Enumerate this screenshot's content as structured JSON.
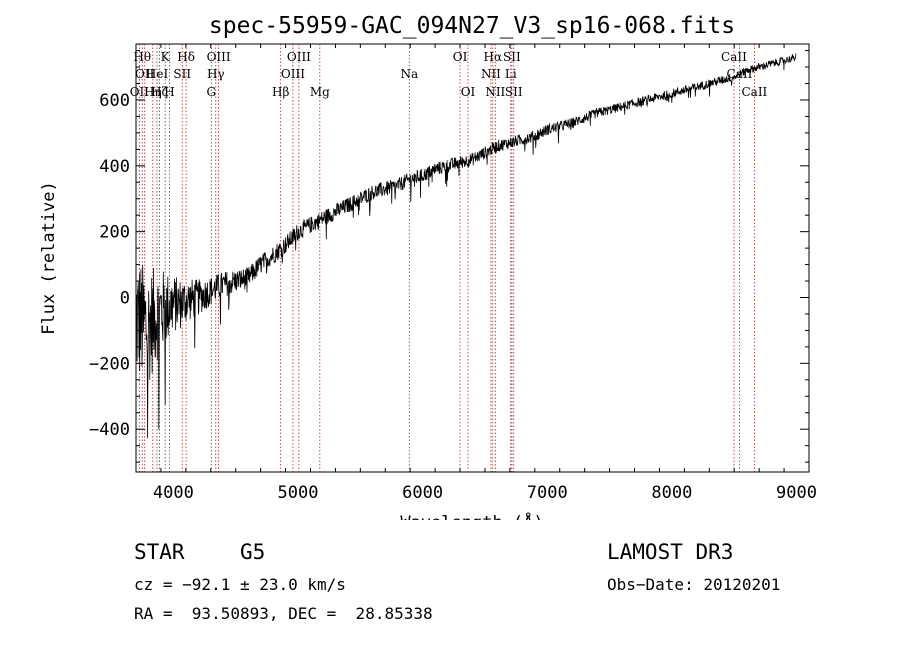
{
  "chart_data": {
    "type": "line",
    "title": "spec-55959-GAC_094N27_V3_sp16-068.fits",
    "xlabel": "Wavelength (Å)",
    "ylabel": "Flux (relative)",
    "xlim": [
      3700,
      9100
    ],
    "ylim": [
      -530,
      770
    ],
    "x_ticks": [
      4000,
      5000,
      6000,
      7000,
      8000,
      9000
    ],
    "y_ticks": [
      -400,
      -200,
      0,
      200,
      400,
      600
    ],
    "x_tick_labels": [
      "4000",
      "5000",
      "6000",
      "7000",
      "8000",
      "9000"
    ],
    "y_tick_labels": [
      "−400",
      "−200",
      "0",
      "200",
      "400",
      "600"
    ],
    "series": [
      {
        "name": "flux",
        "x": [
          3700,
          3750,
          3800,
          3850,
          3900,
          3950,
          4000,
          4050,
          4100,
          4200,
          4300,
          4400,
          4500,
          4600,
          4700,
          4800,
          4900,
          5000,
          5100,
          5200,
          5300,
          5400,
          5500,
          5600,
          5700,
          5800,
          5900,
          6000,
          6100,
          6200,
          6300,
          6400,
          6500,
          6600,
          6700,
          6800,
          6900,
          7000,
          7200,
          7400,
          7600,
          7800,
          8000,
          8200,
          8400,
          8500,
          8600,
          8700,
          8800,
          8900,
          9000
        ],
        "y": [
          -60,
          -80,
          -90,
          -60,
          -40,
          -30,
          -20,
          -20,
          -10,
          0,
          20,
          40,
          50,
          60,
          100,
          130,
          160,
          200,
          220,
          240,
          260,
          280,
          300,
          320,
          330,
          340,
          360,
          370,
          390,
          400,
          410,
          420,
          440,
          460,
          470,
          480,
          490,
          510,
          530,
          560,
          580,
          600,
          620,
          640,
          660,
          670,
          690,
          700,
          710,
          720,
          730
        ],
        "noise": [
          200,
          190,
          180,
          150,
          130,
          110,
          90,
          80,
          70,
          55,
          45,
          40,
          36,
          32,
          30,
          28,
          28,
          27,
          26,
          25,
          25,
          24,
          24,
          23,
          23,
          22,
          22,
          22,
          21,
          21,
          20,
          20,
          19,
          19,
          18,
          18,
          18,
          17,
          16,
          15,
          14,
          14,
          14,
          13,
          13,
          12,
          12,
          12,
          12,
          11,
          11
        ]
      }
    ],
    "emission_lines": [
      {
        "wave": 3727,
        "label": "OII",
        "row": 3
      },
      {
        "wave": 3750,
        "label": "Hθ",
        "row": 1
      },
      {
        "wave": 3770,
        "label": "OII",
        "row": 2
      },
      {
        "wave": 3835,
        "label": "Hη",
        "row": 3
      },
      {
        "wave": 3869,
        "label": "HeI",
        "row": 2
      },
      {
        "wave": 3889,
        "label": "Hζ",
        "row": 3
      },
      {
        "wave": 3934,
        "label": "K",
        "row": 1
      },
      {
        "wave": 3969,
        "label": "H",
        "row": 3
      },
      {
        "wave": 4071,
        "label": "SII",
        "row": 2
      },
      {
        "wave": 4102,
        "label": "Hδ",
        "row": 1
      },
      {
        "wave": 4304,
        "label": "G",
        "row": 3
      },
      {
        "wave": 4340,
        "label": "Hγ",
        "row": 2
      },
      {
        "wave": 4363,
        "label": "OIII",
        "row": 1
      },
      {
        "wave": 4861,
        "label": "Hβ",
        "row": 3
      },
      {
        "wave": 4959,
        "label": "OIII",
        "row": 2
      },
      {
        "wave": 5007,
        "label": "OIII",
        "row": 1
      },
      {
        "wave": 5175,
        "label": "Mg",
        "row": 3
      },
      {
        "wave": 5893,
        "label": "Na",
        "row": 2
      },
      {
        "wave": 6300,
        "label": "OI",
        "row": 1
      },
      {
        "wave": 6364,
        "label": "OI",
        "row": 3
      },
      {
        "wave": 6548,
        "label": "NII",
        "row": 2
      },
      {
        "wave": 6563,
        "label": "Hα",
        "row": 1
      },
      {
        "wave": 6583,
        "label": "NII",
        "row": 3
      },
      {
        "wave": 6707,
        "label": "Li",
        "row": 2
      },
      {
        "wave": 6716,
        "label": "SII",
        "row": 1
      },
      {
        "wave": 6731,
        "label": "SII",
        "row": 3
      },
      {
        "wave": 8498,
        "label": "CaII",
        "row": 1
      },
      {
        "wave": 8542,
        "label": "CaII",
        "row": 2
      },
      {
        "wave": 8662,
        "label": "CaII",
        "row": 3
      }
    ],
    "line_color": "#b02020"
  },
  "footer": {
    "class_label": "STAR",
    "subclass": "G5",
    "survey": "LAMOST DR3",
    "cz": "cz = −92.1 ± 23.0 km/s",
    "obs_date": "Obs−Date: 20120201",
    "coords": "RA =  93.50893, DEC =  28.85338"
  }
}
